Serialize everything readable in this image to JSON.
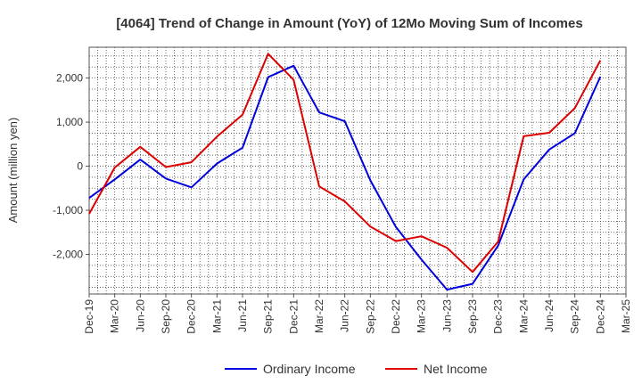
{
  "chart_data": {
    "type": "line",
    "title": "[4064]  Trend of Change in Amount (YoY) of 12Mo Moving Sum of Incomes",
    "xlabel": "",
    "ylabel": "Amount (million yen)",
    "categories": [
      "Dec-19",
      "Mar-20",
      "Jun-20",
      "Sep-20",
      "Dec-20",
      "Mar-21",
      "Jun-21",
      "Sep-21",
      "Dec-21",
      "Mar-22",
      "Jun-22",
      "Sep-22",
      "Dec-22",
      "Mar-23",
      "Jun-23",
      "Sep-23",
      "Dec-23",
      "Mar-24",
      "Jun-24",
      "Sep-24",
      "Dec-24",
      "Mar-25"
    ],
    "ylim": [
      -2900,
      2700
    ],
    "yticks": [
      -2000,
      -1000,
      0,
      1000,
      2000
    ],
    "ytick_labels": [
      "-2,000",
      "-1,000",
      "0",
      "1,000",
      "2,000"
    ],
    "grid": true,
    "legend_position": "bottom",
    "series": [
      {
        "name": "Ordinary Income",
        "color": "#0000dd",
        "values": [
          -720,
          -300,
          150,
          -280,
          -480,
          60,
          420,
          2020,
          2280,
          1220,
          1020,
          -320,
          -1380,
          -2120,
          -2800,
          -2670,
          -1800,
          -300,
          380,
          750,
          2030,
          null
        ]
      },
      {
        "name": "Net Income",
        "color": "#dd0000",
        "values": [
          -1080,
          -30,
          440,
          -20,
          90,
          670,
          1170,
          2550,
          1960,
          -460,
          -800,
          -1370,
          -1700,
          -1590,
          -1850,
          -2400,
          -1710,
          680,
          760,
          1320,
          2400,
          null
        ]
      }
    ]
  }
}
